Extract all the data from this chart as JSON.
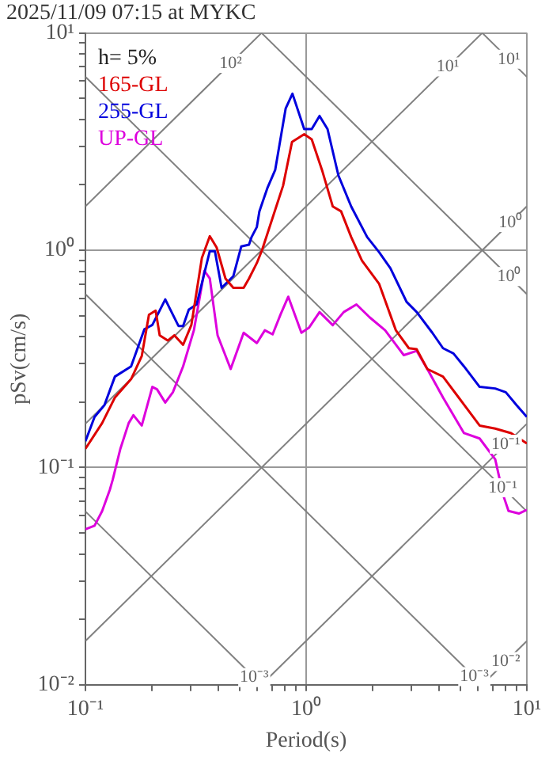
{
  "chart_data": {
    "type": "line",
    "title": "2025/11/09 07:15 at MYKC",
    "xlabel": "Period(s)",
    "ylabel": "pSv(cm/s)",
    "log": "xy",
    "xlim": [
      0.1,
      10
    ],
    "ylim": [
      0.01,
      10
    ],
    "xticks": [
      {
        "value": 0.1,
        "label": "10⁻¹"
      },
      {
        "value": 0.2,
        "label": null
      },
      {
        "value": 0.3,
        "label": null
      },
      {
        "value": 0.4,
        "label": null
      },
      {
        "value": 0.5,
        "label": null
      },
      {
        "value": 0.6,
        "label": null
      },
      {
        "value": 0.7,
        "label": null
      },
      {
        "value": 0.8,
        "label": null
      },
      {
        "value": 0.9,
        "label": null
      },
      {
        "value": 1,
        "label": "10⁰"
      },
      {
        "value": 2,
        "label": null
      },
      {
        "value": 3,
        "label": null
      },
      {
        "value": 4,
        "label": null
      },
      {
        "value": 5,
        "label": null
      },
      {
        "value": 6,
        "label": null
      },
      {
        "value": 7,
        "label": null
      },
      {
        "value": 8,
        "label": null
      },
      {
        "value": 9,
        "label": null
      },
      {
        "value": 10,
        "label": "10¹"
      }
    ],
    "yticks": [
      {
        "value": 0.01,
        "label": "10⁻²"
      },
      {
        "value": 0.02,
        "label": null
      },
      {
        "value": 0.03,
        "label": null
      },
      {
        "value": 0.04,
        "label": null
      },
      {
        "value": 0.05,
        "label": null
      },
      {
        "value": 0.06,
        "label": null
      },
      {
        "value": 0.07,
        "label": null
      },
      {
        "value": 0.08,
        "label": null
      },
      {
        "value": 0.09,
        "label": null
      },
      {
        "value": 0.1,
        "label": "10⁻¹"
      },
      {
        "value": 0.2,
        "label": null
      },
      {
        "value": 0.3,
        "label": null
      },
      {
        "value": 0.4,
        "label": null
      },
      {
        "value": 0.5,
        "label": null
      },
      {
        "value": 0.6,
        "label": null
      },
      {
        "value": 0.7,
        "label": null
      },
      {
        "value": 0.8,
        "label": null
      },
      {
        "value": 0.9,
        "label": null
      },
      {
        "value": 1,
        "label": "10⁰"
      },
      {
        "value": 2,
        "label": null
      },
      {
        "value": 3,
        "label": null
      },
      {
        "value": 4,
        "label": null
      },
      {
        "value": 5,
        "label": null
      },
      {
        "value": 6,
        "label": null
      },
      {
        "value": 7,
        "label": null
      },
      {
        "value": 8,
        "label": null
      },
      {
        "value": 9,
        "label": null
      },
      {
        "value": 10,
        "label": "10¹"
      }
    ],
    "grid": true,
    "legend": "top left",
    "series": [
      {
        "name": "165-GL",
        "color": "#dd0000",
        "x": [
          0.1,
          0.119,
          0.136,
          0.161,
          0.18,
          0.194,
          0.208,
          0.217,
          0.236,
          0.253,
          0.277,
          0.302,
          0.337,
          0.366,
          0.393,
          0.431,
          0.468,
          0.521,
          0.551,
          0.598,
          0.631,
          0.786,
          0.863,
          0.98,
          1.06,
          1.18,
          1.32,
          1.44,
          1.6,
          1.79,
          2.14,
          2.55,
          2.92,
          3.17,
          3.54,
          4.17,
          4.91,
          6.11,
          7.19,
          8.48,
          10
        ],
        "values": [
          0.122,
          0.16,
          0.21,
          0.255,
          0.326,
          0.505,
          0.527,
          0.406,
          0.384,
          0.406,
          0.367,
          0.453,
          0.921,
          1.16,
          1.03,
          0.741,
          0.671,
          0.671,
          0.741,
          0.873,
          1.0,
          1.98,
          3.15,
          3.42,
          3.24,
          2.34,
          1.59,
          1.51,
          1.15,
          0.896,
          0.701,
          0.428,
          0.354,
          0.35,
          0.284,
          0.262,
          0.21,
          0.156,
          0.151,
          0.144,
          0.129
        ]
      },
      {
        "name": "255-GL",
        "color": "#0000dd",
        "x": [
          0.1,
          0.11,
          0.122,
          0.136,
          0.161,
          0.185,
          0.201,
          0.23,
          0.264,
          0.277,
          0.294,
          0.319,
          0.366,
          0.386,
          0.414,
          0.468,
          0.508,
          0.551,
          0.566,
          0.598,
          0.614,
          0.667,
          0.724,
          0.808,
          0.867,
          0.98,
          1.06,
          1.15,
          1.25,
          1.4,
          1.6,
          1.89,
          2.14,
          2.41,
          2.85,
          3.17,
          3.73,
          4.17,
          4.65,
          5.19,
          6.11,
          7.19,
          8.03,
          8.97,
          10
        ],
        "values": [
          0.132,
          0.171,
          0.194,
          0.262,
          0.292,
          0.433,
          0.453,
          0.594,
          0.448,
          0.448,
          0.533,
          0.563,
          0.99,
          0.99,
          0.671,
          0.76,
          1.04,
          1.06,
          1.15,
          1.28,
          1.51,
          1.93,
          2.34,
          4.5,
          5.25,
          3.61,
          3.61,
          4.15,
          3.61,
          2.21,
          1.59,
          1.15,
          0.98,
          0.826,
          0.579,
          0.519,
          0.417,
          0.354,
          0.335,
          0.292,
          0.235,
          0.231,
          0.222,
          0.194,
          0.171
        ]
      },
      {
        "name": "UP-GL",
        "color": "#dd00dd",
        "x": [
          0.1,
          0.11,
          0.119,
          0.129,
          0.133,
          0.144,
          0.157,
          0.165,
          0.18,
          0.201,
          0.211,
          0.23,
          0.249,
          0.277,
          0.31,
          0.346,
          0.366,
          0.397,
          0.455,
          0.521,
          0.598,
          0.65,
          0.705,
          0.765,
          0.83,
          0.952,
          1.03,
          1.15,
          1.32,
          1.48,
          1.69,
          1.94,
          2.28,
          2.77,
          3.17,
          3.54,
          4.17,
          5.19,
          6.11,
          7.19,
          7.82,
          8.26,
          9.2,
          10
        ],
        "values": [
          0.052,
          0.054,
          0.063,
          0.079,
          0.088,
          0.122,
          0.16,
          0.174,
          0.156,
          0.235,
          0.229,
          0.199,
          0.222,
          0.292,
          0.428,
          0.804,
          0.741,
          0.406,
          0.284,
          0.417,
          0.374,
          0.428,
          0.41,
          0.505,
          0.611,
          0.417,
          0.44,
          0.519,
          0.452,
          0.519,
          0.563,
          0.491,
          0.428,
          0.329,
          0.344,
          0.284,
          0.21,
          0.144,
          0.136,
          0.109,
          0.0744,
          0.0631,
          0.0614,
          0.0638
        ]
      },
      {
        "type": "line",
        "color": "#808080",
        "x": [
          0.1,
          0.628
        ],
        "values": [
          1.592,
          10
        ]
      },
      {
        "type": "line",
        "color": "#808080",
        "x": [
          0.1,
          6.28
        ],
        "values": [
          0.159,
          10
        ]
      },
      {
        "type": "line",
        "color": "#808080",
        "x": [
          0.1,
          10
        ],
        "values": [
          0.0159,
          1.592
        ]
      },
      {
        "type": "line",
        "color": "#808080",
        "x": [
          0.628,
          10
        ],
        "values": [
          0.01,
          0.159
        ]
      },
      {
        "type": "line",
        "color": "#808080",
        "x": [
          6.28,
          10
        ],
        "values": [
          0.01,
          0.0159
        ]
      },
      {
        "type": "line",
        "color": "#808080",
        "x": [
          6.28,
          10
        ],
        "values": [
          10,
          6.28
        ]
      },
      {
        "type": "line",
        "color": "#808080",
        "x": [
          0.628,
          10
        ],
        "values": [
          10,
          0.628
        ]
      },
      {
        "type": "line",
        "color": "#808080",
        "x": [
          0.1,
          10
        ],
        "values": [
          6.28,
          0.0628
        ]
      },
      {
        "type": "line",
        "color": "#808080",
        "x": [
          0.1,
          6.28
        ],
        "values": [
          0.628,
          0.01
        ]
      },
      {
        "type": "line",
        "color": "#808080",
        "x": [
          0.1,
          0.628
        ],
        "values": [
          0.0628,
          0.01
        ]
      }
    ],
    "annotations": [
      "h= 5%",
      {
        "text": "10²",
        "x": 0.455,
        "y": 7.24
      },
      {
        "text": "10¹",
        "x": 4.38,
        "y": 6.97
      },
      {
        "text": "10¹",
        "x": 8.3,
        "y": 7.57
      },
      {
        "text": "10⁰",
        "x": 8.43,
        "y": 1.34
      },
      {
        "text": "10⁰",
        "x": 8.3,
        "y": 0.757
      },
      {
        "text": "10⁻¹",
        "x": 8.03,
        "y": 0.128
      },
      {
        "text": "10⁻¹",
        "x": 7.78,
        "y": 0.0807
      },
      {
        "text": "10⁻²",
        "x": 8.03,
        "y": 0.0128
      },
      {
        "text": "10⁻³",
        "x": 5.78,
        "y": 0.0109
      },
      {
        "text": "10⁻³",
        "x": 0.582,
        "y": 0.0108
      }
    ]
  }
}
